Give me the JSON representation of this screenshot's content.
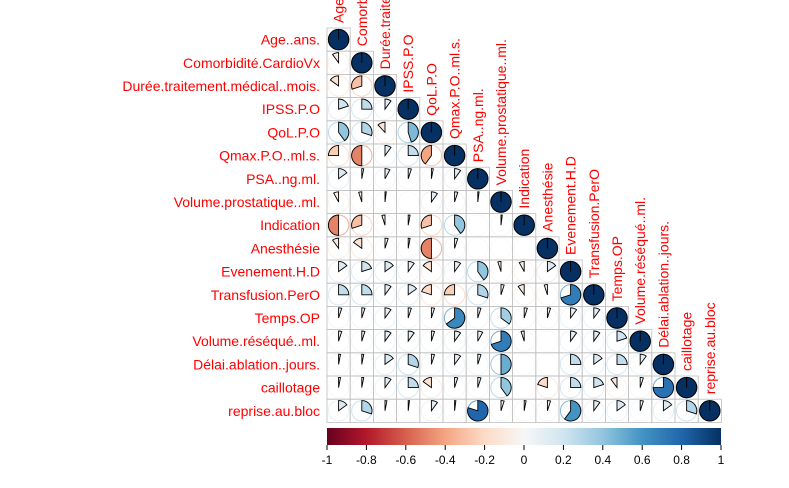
{
  "chart_data": {
    "type": "heatmap",
    "style": "pie-lower-triangle",
    "variables": [
      "Age..ans.",
      "Comorbidité.CardioVx",
      "Durée.traitement.médical..mois.",
      "IPSS.P.O",
      "QoL.P.O",
      "Qmax.P.O..ml.s.",
      "PSA..ng.ml.",
      "Volume.prostatique..ml.",
      "Indication",
      "Anesthésie",
      "Evenement.H.D",
      "Transfusion.PerO",
      "Temps.OP",
      "Volume.réséqué..ml.",
      "Délai.ablation..jours.",
      "caillotage",
      "reprise.au.bloc"
    ],
    "matrix": [
      [
        1
      ],
      [
        -0.1,
        1
      ],
      [
        -0.15,
        -0.3,
        1
      ],
      [
        0.2,
        0.25,
        0.1,
        1
      ],
      [
        0.4,
        0.3,
        -0.12,
        0.45,
        1
      ],
      [
        -0.25,
        -0.5,
        0.1,
        0.25,
        -0.4,
        1
      ],
      [
        0.15,
        0.03,
        0.08,
        0.05,
        0.03,
        0.1,
        1
      ],
      [
        -0.08,
        -0.05,
        0.02,
        0.0,
        0.1,
        0.05,
        0.02,
        1
      ],
      [
        -0.5,
        -0.3,
        -0.05,
        0.03,
        -0.3,
        0.4,
        0.0,
        0.02,
        1
      ],
      [
        -0.1,
        -0.15,
        0.05,
        0.03,
        -0.5,
        0.05,
        0.0,
        0.0,
        0.0,
        1
      ],
      [
        0.15,
        0.2,
        0.15,
        0.1,
        -0.15,
        0.1,
        0.4,
        -0.05,
        -0.08,
        0.15,
        1
      ],
      [
        0.25,
        0.25,
        0.1,
        0.15,
        -0.2,
        -0.25,
        0.3,
        0.05,
        -0.1,
        -0.05,
        0.7,
        1
      ],
      [
        0.05,
        0.05,
        0.1,
        0.05,
        0.05,
        0.65,
        0.05,
        0.35,
        0.05,
        0.05,
        0.1,
        0.1,
        1
      ],
      [
        0.05,
        0.05,
        0.1,
        0.1,
        0.05,
        0.1,
        0.08,
        0.7,
        -0.05,
        0.0,
        0.1,
        0.1,
        0.2,
        1
      ],
      [
        0.03,
        0.03,
        0.15,
        0.3,
        0.05,
        0.1,
        0.05,
        0.5,
        0.0,
        0.0,
        0.25,
        0.15,
        0.25,
        0.1,
        1
      ],
      [
        0.03,
        0.03,
        0.1,
        0.25,
        -0.15,
        0.05,
        0.05,
        0.4,
        0.0,
        -0.2,
        0.25,
        0.2,
        -0.1,
        0.05,
        0.75,
        1
      ],
      [
        0.15,
        0.3,
        0.03,
        0.02,
        0.1,
        0.02,
        0.8,
        0.05,
        0.03,
        0.05,
        0.6,
        0.1,
        0.15,
        0.05,
        0.15,
        0.3,
        1
      ]
    ],
    "colorbar": {
      "ticks": [
        "-1",
        "-0.8",
        "-0.6",
        "-0.4",
        "-0.2",
        "0",
        "0.2",
        "0.4",
        "0.6",
        "0.8",
        "1"
      ],
      "range": [
        -1,
        1
      ]
    },
    "colors": {
      "neg_strong": "#67001f",
      "neg_mid": "#d6604d",
      "neg_light": "#fddbc7",
      "neutral": "#ffffff",
      "pos_light": "#d1e5f0",
      "pos_mid": "#4393c3",
      "pos_strong": "#053061",
      "label": "#ff0000",
      "grid": "#bfbfbf"
    }
  }
}
